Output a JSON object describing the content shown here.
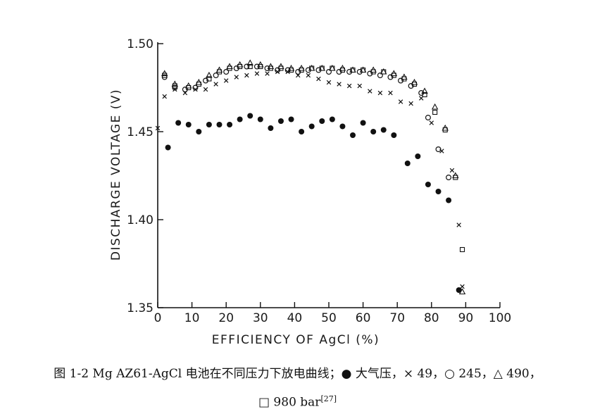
{
  "caption": {
    "line1": "图 1-2 Mg AZ61-AgCl 电池在不同压力下放电曲线；● 大气压，× 49，○ 245，△ 490，",
    "line2": "□ 980  bar",
    "ref": "[27]"
  },
  "chart_data": {
    "type": "scatter",
    "xlabel": "EFFICIENCY OF AgCl (%)",
    "ylabel": "DISCHARGE VOLTAGE (V)",
    "xlim": [
      0,
      100
    ],
    "ylim": [
      1.35,
      1.5
    ],
    "x_ticks": [
      0,
      10,
      20,
      30,
      40,
      50,
      60,
      70,
      80,
      90,
      100
    ],
    "x_tick_labels": [
      "0",
      "10",
      "20",
      "30",
      "40",
      "50",
      "60",
      "70",
      "80",
      "90",
      "100"
    ],
    "y_ticks": [
      1.35,
      1.4,
      1.45,
      1.5
    ],
    "y_tick_labels": [
      "1.35",
      "1.40",
      "1.45",
      "1.50"
    ],
    "grid": false,
    "series": [
      {
        "name": "大气压",
        "marker": "●",
        "color": "#111111",
        "x": [
          3,
          6,
          9,
          12,
          15,
          18,
          21,
          24,
          27,
          30,
          33,
          36,
          39,
          42,
          45,
          48,
          51,
          54,
          57,
          60,
          63,
          66,
          69,
          73,
          76,
          79,
          82,
          85,
          88
        ],
        "y": [
          1.441,
          1.455,
          1.454,
          1.45,
          1.454,
          1.454,
          1.454,
          1.457,
          1.459,
          1.457,
          1.452,
          1.456,
          1.457,
          1.45,
          1.453,
          1.456,
          1.457,
          1.453,
          1.448,
          1.455,
          1.45,
          1.451,
          1.448,
          1.432,
          1.436,
          1.42,
          1.416,
          1.411,
          1.36
        ]
      },
      {
        "name": "49",
        "marker": "×",
        "color": "#111111",
        "x": [
          0,
          2,
          5,
          8,
          11,
          14,
          17,
          20,
          23,
          26,
          29,
          32,
          35,
          38,
          41,
          44,
          47,
          50,
          53,
          56,
          59,
          62,
          65,
          68,
          71,
          74,
          77,
          80,
          83,
          86,
          88,
          89
        ],
        "y": [
          1.452,
          1.47,
          1.474,
          1.472,
          1.474,
          1.474,
          1.477,
          1.479,
          1.481,
          1.482,
          1.483,
          1.483,
          1.484,
          1.484,
          1.482,
          1.482,
          1.48,
          1.478,
          1.477,
          1.476,
          1.476,
          1.473,
          1.472,
          1.472,
          1.467,
          1.466,
          1.469,
          1.455,
          1.439,
          1.428,
          1.397,
          1.362
        ]
      },
      {
        "name": "245",
        "marker": "○",
        "color": "#111111",
        "x": [
          2,
          5,
          8,
          11,
          14,
          17,
          20,
          23,
          26,
          29,
          32,
          35,
          38,
          41,
          44,
          47,
          50,
          53,
          56,
          59,
          62,
          65,
          68,
          71,
          74,
          77,
          79,
          82,
          85
        ],
        "y": [
          1.481,
          1.475,
          1.474,
          1.475,
          1.479,
          1.482,
          1.484,
          1.486,
          1.487,
          1.487,
          1.486,
          1.485,
          1.485,
          1.484,
          1.485,
          1.485,
          1.484,
          1.484,
          1.484,
          1.484,
          1.483,
          1.482,
          1.481,
          1.479,
          1.476,
          1.472,
          1.458,
          1.44,
          1.424
        ]
      },
      {
        "name": "490",
        "marker": "△",
        "color": "#111111",
        "x": [
          2,
          5,
          9,
          12,
          15,
          18,
          21,
          24,
          27,
          30,
          33,
          36,
          39,
          42,
          45,
          48,
          51,
          54,
          57,
          60,
          63,
          66,
          69,
          72,
          75,
          78,
          81,
          84,
          87,
          89
        ],
        "y": [
          1.483,
          1.477,
          1.476,
          1.478,
          1.482,
          1.485,
          1.487,
          1.488,
          1.489,
          1.488,
          1.487,
          1.487,
          1.486,
          1.486,
          1.486,
          1.486,
          1.486,
          1.486,
          1.485,
          1.485,
          1.485,
          1.484,
          1.483,
          1.481,
          1.478,
          1.473,
          1.464,
          1.452,
          1.425,
          1.359
        ]
      },
      {
        "name": "980",
        "marker": "□",
        "color": "#111111",
        "x": [
          2,
          5,
          9,
          12,
          15,
          18,
          21,
          24,
          27,
          30,
          33,
          36,
          39,
          42,
          45,
          48,
          51,
          54,
          57,
          60,
          63,
          66,
          69,
          72,
          75,
          78,
          81,
          84,
          87,
          89
        ],
        "y": [
          1.482,
          1.476,
          1.475,
          1.477,
          1.48,
          1.484,
          1.486,
          1.487,
          1.487,
          1.487,
          1.486,
          1.486,
          1.485,
          1.485,
          1.486,
          1.486,
          1.486,
          1.485,
          1.485,
          1.485,
          1.484,
          1.484,
          1.482,
          1.48,
          1.477,
          1.471,
          1.461,
          1.451,
          1.424,
          1.383
        ]
      }
    ]
  }
}
